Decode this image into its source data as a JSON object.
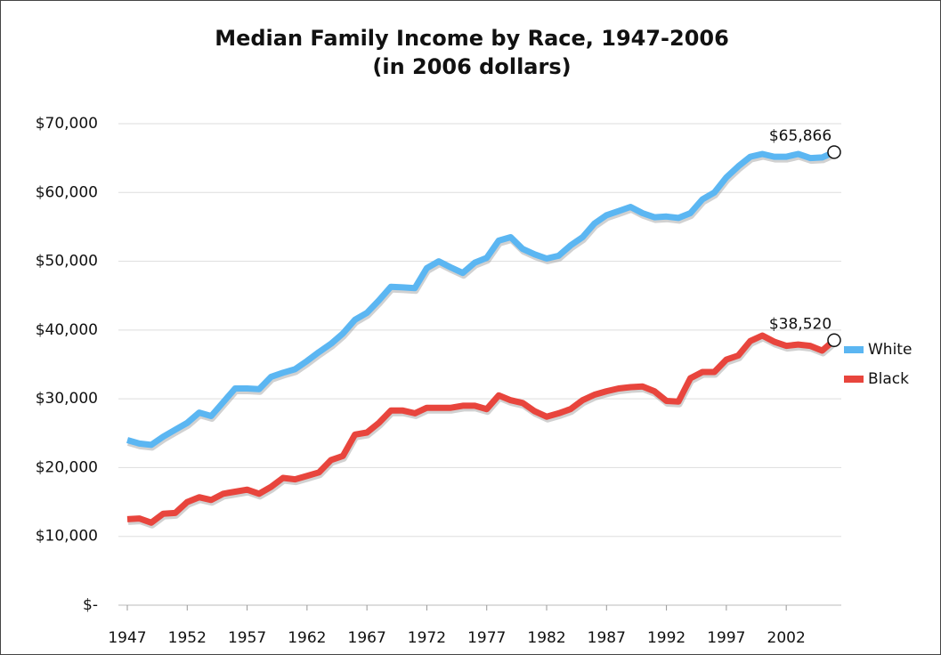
{
  "chart_data": {
    "type": "line",
    "title": "Median Family Income by Race, 1947-2006",
    "subtitle": "(in 2006 dollars)",
    "x": [
      1947,
      1948,
      1949,
      1950,
      1951,
      1952,
      1953,
      1954,
      1955,
      1956,
      1957,
      1958,
      1959,
      1960,
      1961,
      1962,
      1963,
      1964,
      1965,
      1966,
      1967,
      1968,
      1969,
      1970,
      1971,
      1972,
      1973,
      1974,
      1975,
      1976,
      1977,
      1978,
      1979,
      1980,
      1981,
      1982,
      1983,
      1984,
      1985,
      1986,
      1987,
      1988,
      1989,
      1990,
      1991,
      1992,
      1993,
      1994,
      1995,
      1996,
      1997,
      1998,
      1999,
      2000,
      2001,
      2002,
      2003,
      2004,
      2005,
      2006
    ],
    "series": [
      {
        "name": "White",
        "color": "#5bb6f2",
        "values": [
          24000,
          23500,
          23300,
          24500,
          25500,
          26500,
          28000,
          27500,
          29500,
          31500,
          31500,
          31400,
          33200,
          33800,
          34300,
          35500,
          36800,
          38000,
          39500,
          41500,
          42500,
          44300,
          46300,
          46200,
          46100,
          49000,
          50000,
          49100,
          48300,
          49800,
          50500,
          53000,
          53500,
          51800,
          51000,
          50400,
          50800,
          52300,
          53500,
          55500,
          56700,
          57300,
          57900,
          57000,
          56400,
          56500,
          56300,
          57000,
          59000,
          60000,
          62200,
          63800,
          65200,
          65600,
          65200,
          65200,
          65600,
          65000,
          65100,
          65866
        ]
      },
      {
        "name": "Black",
        "color": "#e8453d",
        "values": [
          12500,
          12600,
          12000,
          13300,
          13400,
          15000,
          15700,
          15300,
          16200,
          16500,
          16800,
          16200,
          17200,
          18500,
          18300,
          18800,
          19300,
          21100,
          21700,
          24800,
          25100,
          26500,
          28300,
          28300,
          27900,
          28700,
          28700,
          28700,
          29000,
          29000,
          28500,
          30500,
          29800,
          29400,
          28200,
          27400,
          27900,
          28500,
          29800,
          30600,
          31100,
          31500,
          31700,
          31800,
          31100,
          29700,
          29600,
          33000,
          33900,
          33900,
          35700,
          36300,
          38400,
          39200,
          38300,
          37700,
          37900,
          37700,
          37000,
          38520
        ]
      }
    ],
    "annotations": [
      {
        "text": "$65,866",
        "x": 2006,
        "y": 65866
      },
      {
        "text": "$38,520",
        "x": 2006,
        "y": 38520
      }
    ],
    "xlim": [
      1947,
      2006
    ],
    "xticks": [
      1947,
      1952,
      1957,
      1962,
      1967,
      1972,
      1977,
      1982,
      1987,
      1992,
      1997,
      2002
    ],
    "ylim": [
      0,
      70000
    ],
    "yticks": [
      {
        "value": 0,
        "label": "$-"
      },
      {
        "value": 10000,
        "label": "$10,000"
      },
      {
        "value": 20000,
        "label": "$20,000"
      },
      {
        "value": 30000,
        "label": "$30,000"
      },
      {
        "value": 40000,
        "label": "$40,000"
      },
      {
        "value": 50000,
        "label": "$50,000"
      },
      {
        "value": 60000,
        "label": "$60,000"
      },
      {
        "value": 70000,
        "label": "$70,000"
      }
    ],
    "grid": true,
    "legend": "right"
  }
}
